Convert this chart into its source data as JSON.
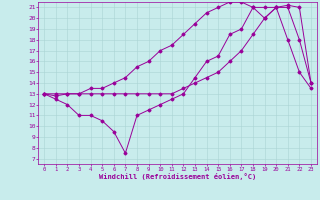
{
  "xlabel": "Windchill (Refroidissement éolien,°C)",
  "background_color": "#c8ecec",
  "line_color": "#990099",
  "grid_color": "#aad4d4",
  "xlim": [
    -0.5,
    23.5
  ],
  "ylim": [
    6.5,
    21.5
  ],
  "xticks": [
    0,
    1,
    2,
    3,
    4,
    5,
    6,
    7,
    8,
    9,
    10,
    11,
    12,
    13,
    14,
    15,
    16,
    17,
    18,
    19,
    20,
    21,
    22,
    23
  ],
  "yticks": [
    7,
    8,
    9,
    10,
    11,
    12,
    13,
    14,
    15,
    16,
    17,
    18,
    19,
    20,
    21
  ],
  "series": [
    {
      "x": [
        0,
        1,
        2,
        3,
        4,
        5,
        6,
        7,
        8,
        9,
        10,
        11,
        12,
        13,
        14,
        15,
        16,
        17,
        18,
        19,
        20,
        21,
        22,
        23
      ],
      "y": [
        13,
        12.5,
        12,
        11,
        11,
        10.5,
        9.5,
        7.5,
        11,
        11.5,
        12,
        12.5,
        13,
        14.5,
        16,
        16.5,
        18.5,
        19,
        21,
        21,
        21,
        21,
        18,
        14
      ]
    },
    {
      "x": [
        0,
        1,
        2,
        3,
        4,
        5,
        6,
        7,
        8,
        9,
        10,
        11,
        12,
        13,
        14,
        15,
        16,
        17,
        18,
        19,
        20,
        21,
        22,
        23
      ],
      "y": [
        13,
        12.8,
        13,
        13,
        13.5,
        13.5,
        14,
        14.5,
        15.5,
        16,
        17,
        17.5,
        18.5,
        19.5,
        20.5,
        21,
        21.5,
        21.5,
        21,
        20,
        21,
        18,
        15,
        13.5
      ]
    },
    {
      "x": [
        0,
        1,
        2,
        3,
        4,
        5,
        6,
        7,
        8,
        9,
        10,
        11,
        12,
        13,
        14,
        15,
        16,
        17,
        18,
        19,
        20,
        21,
        22,
        23
      ],
      "y": [
        13,
        13,
        13,
        13,
        13,
        13,
        13,
        13,
        13,
        13,
        13,
        13,
        13.5,
        14,
        14.5,
        15,
        16,
        17,
        18.5,
        20,
        21,
        21.2,
        21,
        14
      ]
    }
  ]
}
